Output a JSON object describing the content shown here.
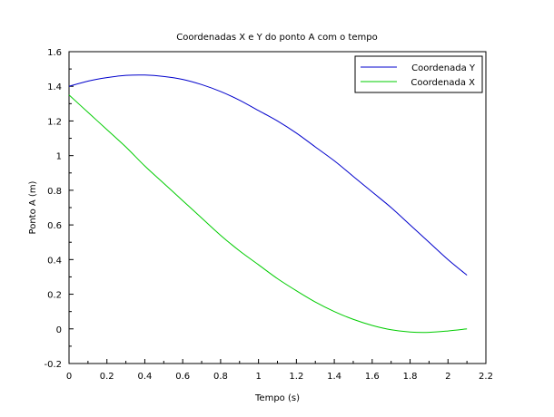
{
  "chart_data": {
    "type": "line",
    "title": "Coordenadas X e Y do ponto A com o tempo",
    "xlabel": "Tempo (s)",
    "ylabel": "Ponto A (m)",
    "xlim": [
      0,
      2.2
    ],
    "ylim": [
      -0.2,
      1.6
    ],
    "xticks": [
      0,
      0.2,
      0.4,
      0.6,
      0.8,
      1,
      1.2,
      1.4,
      1.6,
      1.8,
      2,
      2.2
    ],
    "yticks": [
      -0.2,
      0,
      0.2,
      0.4,
      0.6,
      0.8,
      1,
      1.2,
      1.4,
      1.6
    ],
    "grid": false,
    "legend_position": "top-right",
    "series": [
      {
        "name": "Coordenada Y",
        "color": "#0000cc",
        "x": [
          0,
          0.1,
          0.2,
          0.3,
          0.4,
          0.5,
          0.6,
          0.7,
          0.8,
          0.9,
          1.0,
          1.1,
          1.2,
          1.3,
          1.4,
          1.5,
          1.6,
          1.7,
          1.8,
          1.9,
          2.0,
          2.1
        ],
        "y": [
          1.4,
          1.43,
          1.45,
          1.463,
          1.465,
          1.457,
          1.44,
          1.41,
          1.37,
          1.32,
          1.26,
          1.2,
          1.13,
          1.05,
          0.97,
          0.88,
          0.79,
          0.7,
          0.6,
          0.5,
          0.4,
          0.31
        ]
      },
      {
        "name": "Coordenada X",
        "color": "#00cc00",
        "x": [
          0,
          0.1,
          0.2,
          0.3,
          0.4,
          0.5,
          0.6,
          0.7,
          0.8,
          0.9,
          1.0,
          1.1,
          1.2,
          1.3,
          1.4,
          1.5,
          1.6,
          1.7,
          1.8,
          1.9,
          2.0,
          2.1
        ],
        "y": [
          1.35,
          1.25,
          1.15,
          1.05,
          0.94,
          0.84,
          0.74,
          0.64,
          0.54,
          0.45,
          0.37,
          0.29,
          0.22,
          0.155,
          0.1,
          0.055,
          0.02,
          -0.005,
          -0.018,
          -0.02,
          -0.012,
          0.0
        ]
      }
    ]
  }
}
